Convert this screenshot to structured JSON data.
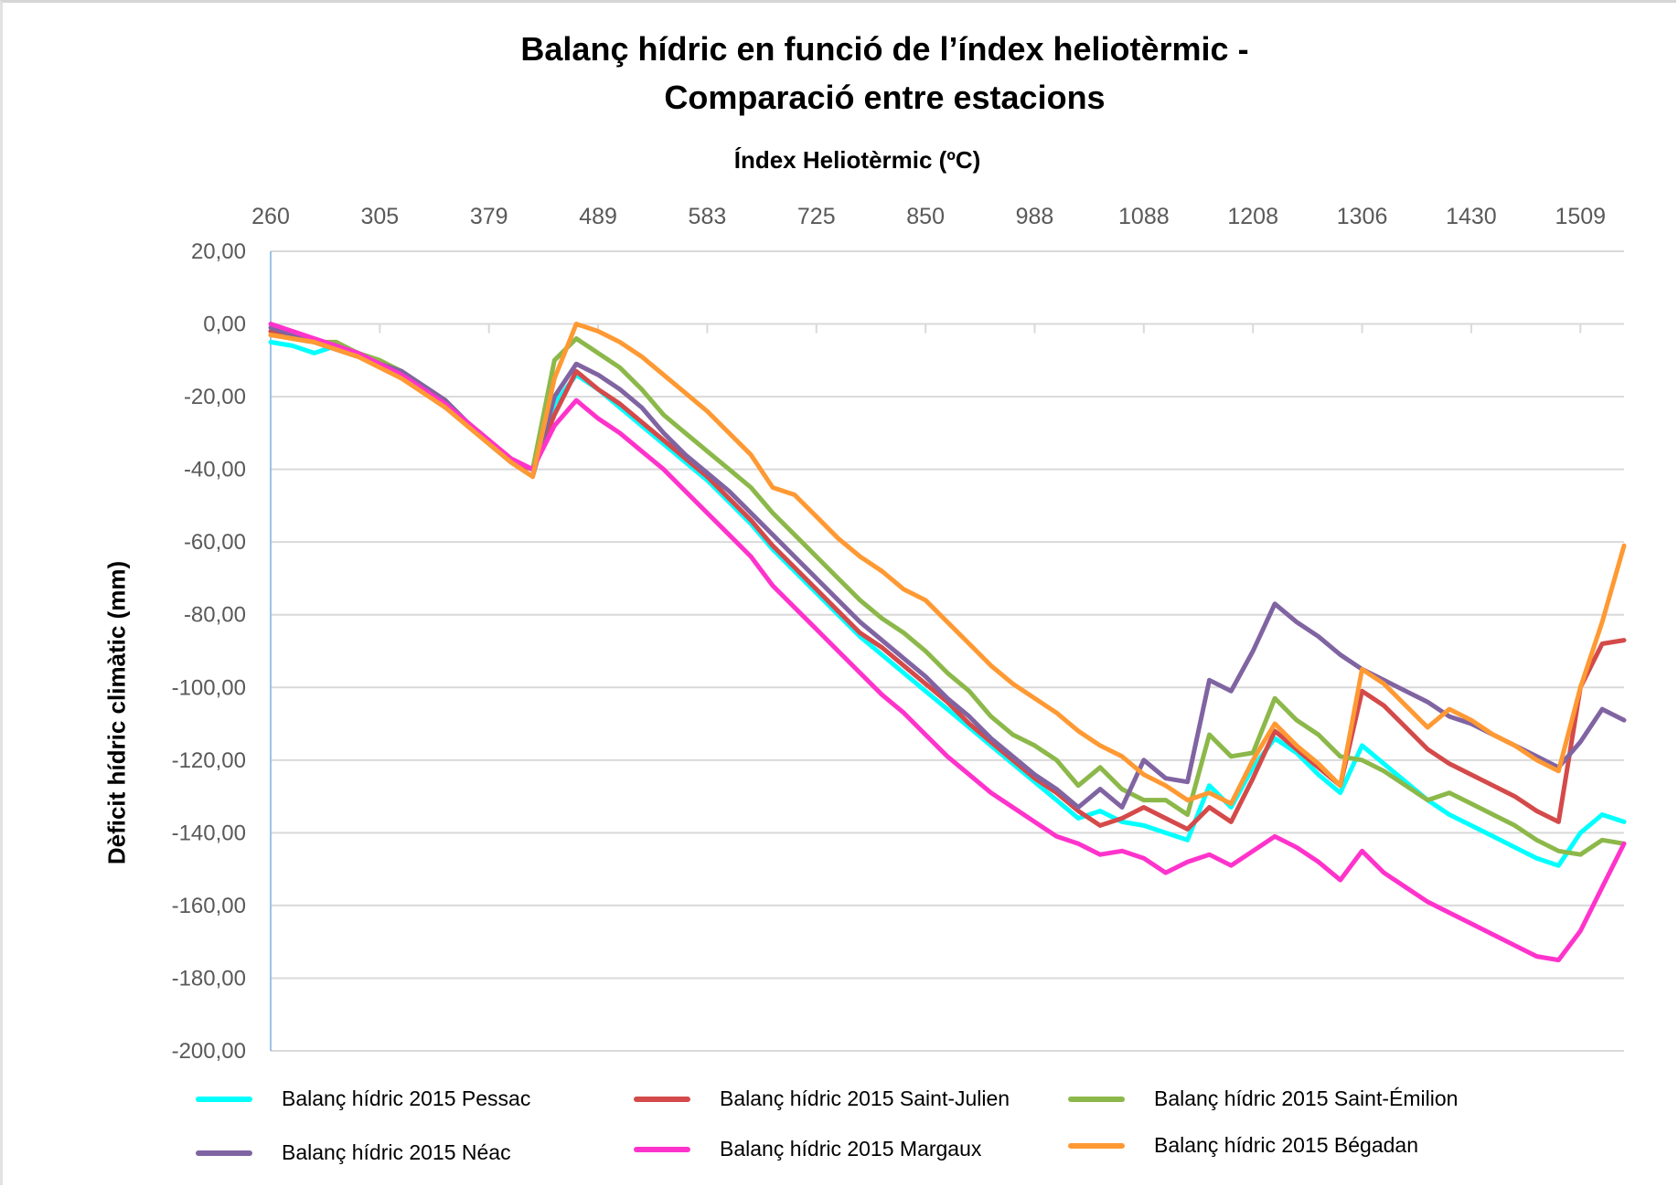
{
  "chart_data": {
    "type": "line",
    "title": [
      "Balanç hídric en funció de l’índex heliotèrmic -",
      "Comparació entre estacions"
    ],
    "xlabel": "Índex Heliotèrmic (ºC)",
    "ylabel": "Dèficit hídric climàtic (mm)",
    "x_tick_labels": [
      "260",
      "305",
      "379",
      "489",
      "583",
      "725",
      "850",
      "988",
      "1088",
      "1208",
      "1306",
      "1430",
      "1509"
    ],
    "x_axis_position": "top",
    "y_ticks": [
      "20,00",
      "0,00",
      "-20,00",
      "-40,00",
      "-60,00",
      "-80,00",
      "-100,00",
      "-120,00",
      "-140,00",
      "-160,00",
      "-180,00",
      "-200,00"
    ],
    "ylim": [
      -200,
      20
    ],
    "grid": true,
    "legend_position": "bottom",
    "series": [
      {
        "name": "Balanç hídric 2015 Pessac",
        "color": "#00ffff",
        "values": [
          -5,
          -6,
          -8,
          -6,
          -8,
          -11,
          -14,
          -18,
          -22,
          -27,
          -33,
          -38,
          -40,
          -22,
          -14,
          -18,
          -23,
          -28,
          -33,
          -38,
          -43,
          -49,
          -55,
          -62,
          -68,
          -74,
          -80,
          -86,
          -91,
          -96,
          -101,
          -106,
          -111,
          -116,
          -121,
          -126,
          -131,
          -136,
          -134,
          -137,
          -138,
          -140,
          -142,
          -127,
          -133,
          -122,
          -114,
          -118,
          -124,
          -129,
          -116,
          -121,
          -126,
          -131,
          -135,
          -138,
          -141,
          -144,
          -147,
          -149,
          -140,
          -135,
          -137
        ]
      },
      {
        "name": "Balanç hídric 2015 Saint-Julien",
        "color": "#d44a4a",
        "values": [
          -2,
          -4,
          -5,
          -7,
          -9,
          -11,
          -14,
          -18,
          -22,
          -27,
          -32,
          -38,
          -40,
          -25,
          -13,
          -18,
          -22,
          -27,
          -32,
          -37,
          -42,
          -48,
          -54,
          -61,
          -67,
          -73,
          -79,
          -85,
          -89,
          -94,
          -99,
          -104,
          -110,
          -115,
          -120,
          -125,
          -129,
          -134,
          -138,
          -136,
          -133,
          -136,
          -139,
          -133,
          -137,
          -125,
          -112,
          -117,
          -122,
          -127,
          -101,
          -105,
          -111,
          -117,
          -121,
          -124,
          -127,
          -130,
          -134,
          -137,
          -100,
          -88,
          -87
        ]
      },
      {
        "name": "Balanç hídric 2015 Saint-Émilion",
        "color": "#8cb84a",
        "values": [
          -3,
          -4,
          -5,
          -5,
          -8,
          -10,
          -13,
          -17,
          -21,
          -27,
          -32,
          -37,
          -40,
          -10,
          -4,
          -8,
          -12,
          -18,
          -25,
          -30,
          -35,
          -40,
          -45,
          -52,
          -58,
          -64,
          -70,
          -76,
          -81,
          -85,
          -90,
          -96,
          -101,
          -108,
          -113,
          -116,
          -120,
          -127,
          -122,
          -128,
          -131,
          -131,
          -135,
          -113,
          -119,
          -118,
          -103,
          -109,
          -113,
          -119,
          -120,
          -123,
          -127,
          -131,
          -129,
          -132,
          -135,
          -138,
          -142,
          -145,
          -146,
          -142,
          -143
        ]
      },
      {
        "name": "Balanç hídric 2015 Néac",
        "color": "#8064a2",
        "values": [
          -1,
          -3,
          -5,
          -7,
          -9,
          -11,
          -13,
          -17,
          -21,
          -27,
          -32,
          -38,
          -42,
          -20,
          -11,
          -14,
          -18,
          -23,
          -30,
          -36,
          -41,
          -46,
          -52,
          -58,
          -64,
          -70,
          -76,
          -82,
          -87,
          -92,
          -97,
          -103,
          -108,
          -114,
          -119,
          -124,
          -128,
          -133,
          -128,
          -133,
          -120,
          -125,
          -126,
          -98,
          -101,
          -90,
          -77,
          -82,
          -86,
          -91,
          -95,
          -98,
          -101,
          -104,
          -108,
          -110,
          -113,
          -116,
          -119,
          -122,
          -115,
          -106,
          -109
        ]
      },
      {
        "name": "Balanç hídric 2015 Margaux",
        "color": "#ff33cc",
        "values": [
          0,
          -2,
          -4,
          -6,
          -8,
          -11,
          -14,
          -18,
          -22,
          -27,
          -32,
          -37,
          -40,
          -28,
          -21,
          -26,
          -30,
          -35,
          -40,
          -46,
          -52,
          -58,
          -64,
          -72,
          -78,
          -84,
          -90,
          -96,
          -102,
          -107,
          -113,
          -119,
          -124,
          -129,
          -133,
          -137,
          -141,
          -143,
          -146,
          -145,
          -147,
          -151,
          -148,
          -146,
          -149,
          -145,
          -141,
          -144,
          -148,
          -153,
          -145,
          -151,
          -155,
          -159,
          -162,
          -165,
          -168,
          -171,
          -174,
          -175,
          -167,
          -155,
          -143
        ]
      },
      {
        "name": "Balanç hídric 2015 Bégadan",
        "color": "#ff9933",
        "values": [
          -3,
          -4,
          -5,
          -7,
          -9,
          -12,
          -15,
          -19,
          -23,
          -28,
          -33,
          -38,
          -42,
          -15,
          0,
          -2,
          -5,
          -9,
          -14,
          -19,
          -24,
          -30,
          -36,
          -45,
          -47,
          -53,
          -59,
          -64,
          -68,
          -73,
          -76,
          -82,
          -88,
          -94,
          -99,
          -103,
          -107,
          -112,
          -116,
          -119,
          -124,
          -127,
          -131,
          -129,
          -132,
          -120,
          -110,
          -116,
          -121,
          -127,
          -95,
          -99,
          -105,
          -111,
          -106,
          -109,
          -113,
          -116,
          -120,
          -123,
          -100,
          -82,
          -61
        ]
      }
    ]
  }
}
